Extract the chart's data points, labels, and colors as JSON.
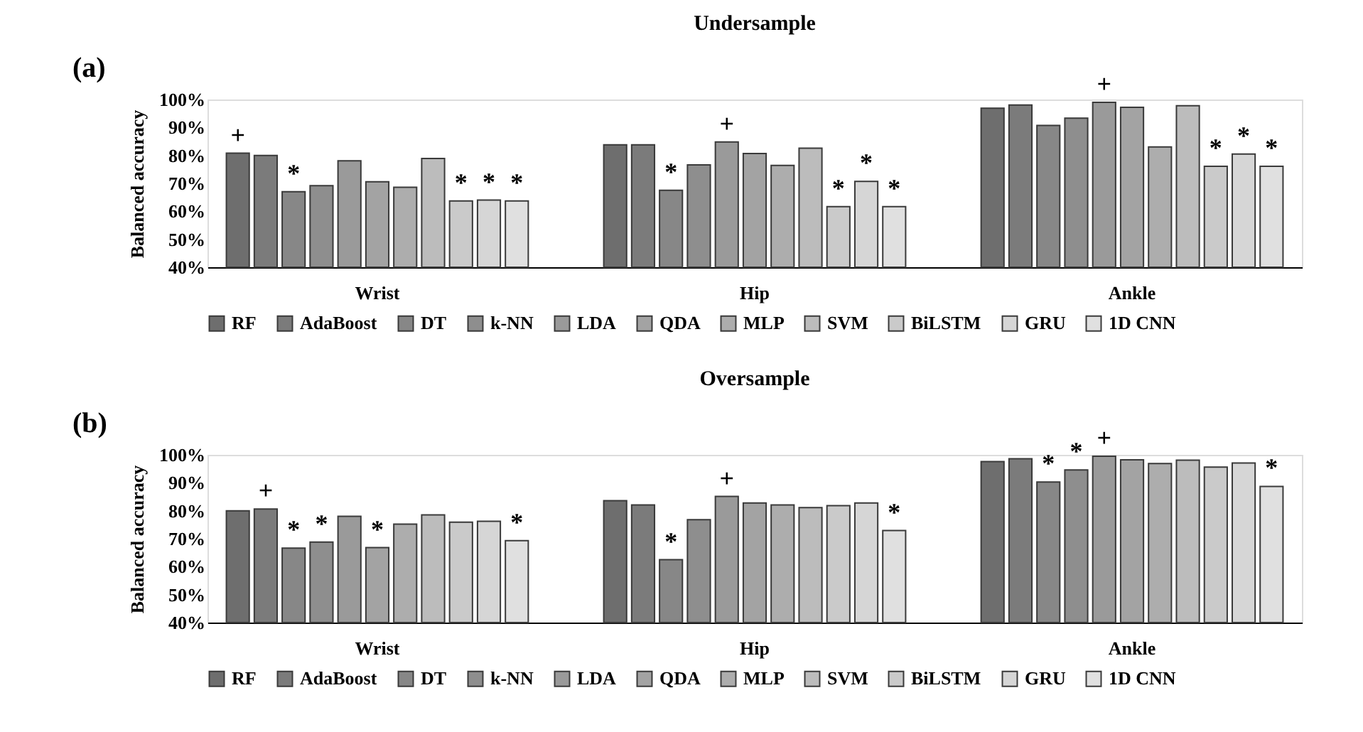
{
  "chart_data": [
    {
      "type": "bar",
      "title": "Undersample",
      "ylabel": "Balanced accuracy",
      "annotations": [
        "(a)"
      ],
      "categories": [
        "Wrist",
        "Hip",
        "Ankle"
      ],
      "ylim": [
        40,
        100
      ],
      "yticks": [
        {
          "value": 40,
          "label": "40%"
        },
        {
          "value": 50,
          "label": "50%"
        },
        {
          "value": 60,
          "label": "60%"
        },
        {
          "value": 70,
          "label": "70%"
        },
        {
          "value": 80,
          "label": "80%"
        },
        {
          "value": 90,
          "label": "90%"
        },
        {
          "value": 100,
          "label": "100%"
        }
      ],
      "grid": false,
      "legend": "bottom",
      "series": [
        {
          "name": "RF",
          "color": "#6e6e6e",
          "values": [
            80.8,
            83.8,
            96.9
          ],
          "value_labels": [
            "+",
            null,
            null
          ]
        },
        {
          "name": "AdaBoost",
          "color": "#7b7b7b",
          "values": [
            80.0,
            83.8,
            98.0
          ],
          "value_labels": [
            null,
            null,
            null
          ]
        },
        {
          "name": "DT",
          "color": "#878787",
          "values": [
            67.0,
            67.5,
            90.7
          ],
          "value_labels": [
            "*",
            "*",
            null
          ]
        },
        {
          "name": "k-NN",
          "color": "#8e8e8e",
          "values": [
            69.2,
            76.6,
            93.3
          ],
          "value_labels": [
            null,
            null,
            null
          ]
        },
        {
          "name": "LDA",
          "color": "#9a9a9a",
          "values": [
            78.1,
            84.8,
            99.0
          ],
          "value_labels": [
            null,
            "+",
            "+"
          ]
        },
        {
          "name": "QDA",
          "color": "#a3a3a3",
          "values": [
            70.6,
            80.7,
            97.2
          ],
          "value_labels": [
            null,
            null,
            null
          ]
        },
        {
          "name": "MLP",
          "color": "#adadad",
          "values": [
            68.6,
            76.4,
            83.0
          ],
          "value_labels": [
            null,
            null,
            null
          ]
        },
        {
          "name": "SVM",
          "color": "#bcbcbc",
          "values": [
            78.9,
            82.6,
            97.8
          ],
          "value_labels": [
            null,
            null,
            null
          ]
        },
        {
          "name": "BiLSTM",
          "color": "#cacaca",
          "values": [
            63.7,
            61.7,
            76.1
          ],
          "value_labels": [
            "*",
            "*",
            "*"
          ]
        },
        {
          "name": "GRU",
          "color": "#d6d6d6",
          "values": [
            64.0,
            70.7,
            80.5
          ],
          "value_labels": [
            "*",
            "*",
            "*"
          ]
        },
        {
          "name": "1D CNN",
          "color": "#e0e0e0",
          "values": [
            63.7,
            61.7,
            76.1
          ],
          "value_labels": [
            "*",
            "*",
            "*"
          ]
        }
      ]
    },
    {
      "type": "bar",
      "title": "Oversample",
      "ylabel": "Balanced accuracy",
      "annotations": [
        "(b)"
      ],
      "categories": [
        "Wrist",
        "Hip",
        "Ankle"
      ],
      "ylim": [
        40,
        100
      ],
      "yticks": [
        {
          "value": 40,
          "label": "40%"
        },
        {
          "value": 50,
          "label": "50%"
        },
        {
          "value": 60,
          "label": "60%"
        },
        {
          "value": 70,
          "label": "70%"
        },
        {
          "value": 80,
          "label": "80%"
        },
        {
          "value": 90,
          "label": "90%"
        },
        {
          "value": 100,
          "label": "100%"
        }
      ],
      "grid": false,
      "legend": "bottom",
      "series": [
        {
          "name": "RF",
          "color": "#6e6e6e",
          "values": [
            80.0,
            83.6,
            97.6
          ],
          "value_labels": [
            null,
            null,
            null
          ]
        },
        {
          "name": "AdaBoost",
          "color": "#7b7b7b",
          "values": [
            80.6,
            82.1,
            98.6
          ],
          "value_labels": [
            "+",
            null,
            null
          ]
        },
        {
          "name": "DT",
          "color": "#878787",
          "values": [
            66.6,
            62.5,
            90.3
          ],
          "value_labels": [
            "*",
            "*",
            "*"
          ]
        },
        {
          "name": "k-NN",
          "color": "#8e8e8e",
          "values": [
            68.8,
            76.8,
            94.6
          ],
          "value_labels": [
            "*",
            null,
            "*"
          ]
        },
        {
          "name": "LDA",
          "color": "#9a9a9a",
          "values": [
            78.0,
            85.1,
            99.5
          ],
          "value_labels": [
            null,
            "+",
            "+"
          ]
        },
        {
          "name": "QDA",
          "color": "#a3a3a3",
          "values": [
            66.8,
            82.8,
            98.2
          ],
          "value_labels": [
            "*",
            null,
            null
          ]
        },
        {
          "name": "MLP",
          "color": "#adadad",
          "values": [
            75.2,
            82.1,
            96.9
          ],
          "value_labels": [
            null,
            null,
            null
          ]
        },
        {
          "name": "SVM",
          "color": "#bcbcbc",
          "values": [
            78.5,
            81.1,
            98.1
          ],
          "value_labels": [
            null,
            null,
            null
          ]
        },
        {
          "name": "BiLSTM",
          "color": "#cacaca",
          "values": [
            75.9,
            81.8,
            95.6
          ],
          "value_labels": [
            null,
            null,
            null
          ]
        },
        {
          "name": "GRU",
          "color": "#d6d6d6",
          "values": [
            76.2,
            82.8,
            97.1
          ],
          "value_labels": [
            null,
            null,
            null
          ]
        },
        {
          "name": "1D CNN",
          "color": "#e0e0e0",
          "values": [
            69.3,
            72.9,
            88.7
          ],
          "value_labels": [
            "*",
            "*",
            "*"
          ]
        }
      ]
    }
  ]
}
